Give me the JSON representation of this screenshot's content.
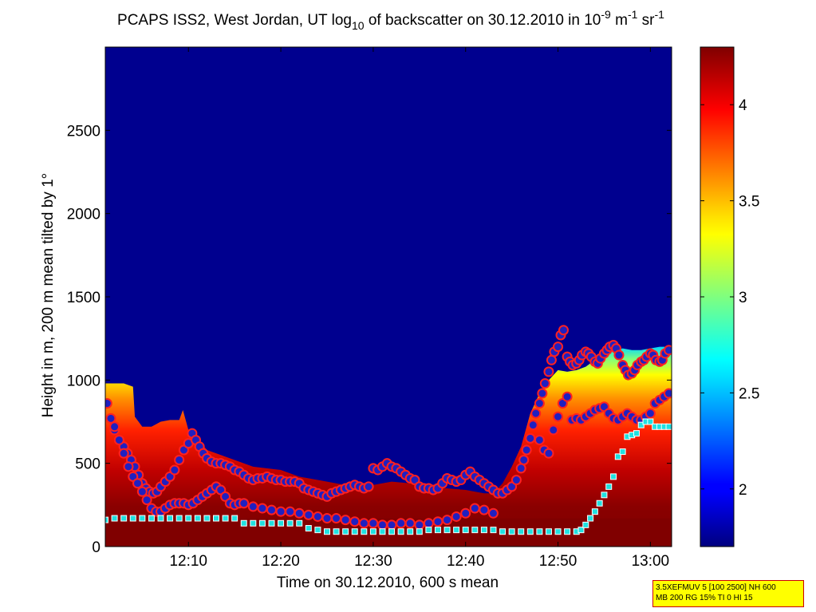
{
  "chart_data": {
    "type": "heatmap",
    "title_parts": {
      "lead": "PCAPS ISS2, West Jordan, UT log",
      "sub": "10",
      "mid": " of backscatter on 30.12.2010 in 10",
      "sup1": "-9",
      "after1": " m",
      "sup2": "-1",
      "after2": " sr",
      "sup3": "-1"
    },
    "xlabel": "Time on 30.12.2010, 600 s mean",
    "ylabel": "Height in m, 200 m mean tilted by 1°",
    "x_ticks": [
      {
        "label": "12:10",
        "min": 10
      },
      {
        "label": "12:20",
        "min": 20
      },
      {
        "label": "12:30",
        "min": 30
      },
      {
        "label": "12:40",
        "min": 40
      },
      {
        "label": "12:50",
        "min": 50
      },
      {
        "label": "13:00",
        "min": 60
      }
    ],
    "xlim_minutes_after_1200": [
      1,
      62.3
    ],
    "y_ticks": [
      0,
      500,
      1000,
      1500,
      2000,
      2500
    ],
    "ylim": [
      0,
      3000
    ],
    "colorbar": {
      "range": [
        1.7,
        4.3
      ],
      "ticks": [
        2,
        2.5,
        3,
        3.5,
        4
      ],
      "colormap": "jet"
    },
    "background_value": 1.7,
    "layer_boundary": {
      "description": "top of enhanced backscatter aerosol layer",
      "time_min": [
        1,
        3,
        4,
        4.2,
        5,
        6,
        7,
        8,
        9,
        9.4,
        10,
        11,
        12,
        13,
        15,
        17,
        20,
        22,
        24,
        26,
        28,
        30,
        32,
        34,
        36,
        38,
        40,
        42,
        43,
        44,
        45,
        46,
        47,
        48,
        49,
        50,
        51,
        52,
        53,
        54,
        55,
        56,
        57,
        58,
        59,
        60,
        61,
        62.3
      ],
      "height_m": [
        980,
        980,
        960,
        780,
        720,
        720,
        750,
        760,
        760,
        820,
        700,
        650,
        580,
        560,
        520,
        480,
        460,
        420,
        400,
        380,
        360,
        370,
        390,
        380,
        360,
        350,
        340,
        320,
        320,
        380,
        480,
        600,
        800,
        920,
        1000,
        1060,
        1050,
        1060,
        1080,
        1120,
        1160,
        1180,
        1190,
        1180,
        1180,
        1190,
        1200,
        1200
      ]
    },
    "series": [
      {
        "marker": "circle-red-outline",
        "time_min": [
          1.2,
          1.6,
          2,
          2.5,
          3,
          3.4,
          3.8,
          4.2,
          4.6,
          5,
          5.4,
          5.8,
          6.2,
          6.6,
          7,
          7.5,
          8,
          8.5,
          9,
          9.5,
          10,
          10.4,
          10.8,
          11.2,
          11.6,
          12,
          12.5,
          13,
          13.5,
          14,
          14.5,
          15,
          15.5,
          16,
          16.5,
          17,
          17.5,
          18,
          18.5,
          19,
          19.5,
          20,
          20.5,
          21,
          21.5,
          22,
          22.5,
          23,
          23.5,
          24,
          24.5,
          25,
          25.5,
          26,
          26.5,
          27,
          27.5,
          28,
          28.5,
          29,
          29.5,
          30,
          30.5,
          31,
          31.5,
          32,
          32.5,
          33,
          33.5,
          34,
          34.5,
          35,
          35.5,
          36,
          36.5,
          37,
          37.5,
          38,
          38.5,
          39,
          39.5,
          40,
          40.5,
          41,
          41.5,
          42,
          42.5,
          43,
          43.5,
          44,
          44.5,
          45,
          45.5,
          46,
          46.3,
          46.6,
          47,
          47.3,
          47.6,
          48,
          48.3,
          48.6,
          49,
          49.3,
          49.6,
          50,
          50.3,
          50.6,
          51,
          51.3,
          51.6,
          52,
          52.3,
          52.6,
          53,
          53.3,
          53.6,
          54,
          54.3,
          54.6,
          55,
          55.3,
          55.6,
          56,
          56.3,
          56.6,
          57,
          57.3,
          57.6,
          58,
          58.3,
          58.6,
          59,
          59.3,
          59.6,
          60,
          60.3,
          60.6,
          61,
          61.3,
          61.6,
          62
        ],
        "height_m": [
          860,
          770,
          700,
          640,
          600,
          560,
          520,
          480,
          430,
          380,
          350,
          330,
          320,
          330,
          360,
          390,
          420,
          460,
          520,
          580,
          620,
          680,
          640,
          600,
          560,
          530,
          510,
          500,
          500,
          490,
          480,
          460,
          450,
          430,
          410,
          400,
          410,
          410,
          420,
          410,
          400,
          400,
          390,
          390,
          390,
          380,
          350,
          340,
          330,
          320,
          310,
          300,
          320,
          330,
          340,
          350,
          360,
          370,
          360,
          350,
          360,
          470,
          460,
          480,
          500,
          480,
          470,
          450,
          430,
          410,
          400,
          360,
          350,
          350,
          340,
          350,
          380,
          410,
          400,
          390,
          400,
          430,
          450,
          420,
          400,
          380,
          360,
          340,
          320,
          320,
          340,
          360,
          400,
          470,
          520,
          580,
          650,
          730,
          800,
          860,
          920,
          980,
          1050,
          1120,
          1170,
          1200,
          1270,
          1300,
          1140,
          1110,
          1090,
          1100,
          1120,
          1150,
          1170,
          1160,
          1140,
          1110,
          1100,
          1130,
          1160,
          1180,
          1200,
          1210,
          1190,
          1150,
          1090,
          1060,
          1030,
          1040,
          1060,
          1090,
          1110,
          1120,
          1140,
          1160,
          1150,
          1120,
          1110,
          1120,
          1160,
          1180,
          1170
        ]
      },
      {
        "marker": "circle-red-outline",
        "time_min": [
          2,
          2.5,
          3,
          3.5,
          4,
          4.5,
          5,
          5.5,
          6,
          6.5,
          7,
          7.5,
          8,
          8.5,
          9,
          9.5,
          10,
          10.5,
          11,
          11.5,
          12,
          12.5,
          13,
          13.5,
          14,
          14.5,
          15,
          15.5,
          16,
          17,
          18,
          19,
          20,
          21,
          22,
          23,
          24,
          25,
          26,
          27,
          28,
          29,
          30,
          31,
          32,
          33,
          34,
          35,
          36,
          37,
          38,
          39,
          40,
          41,
          42,
          43,
          48,
          48.5,
          49,
          49.5,
          50,
          50.5,
          51,
          51.5,
          52,
          52.5,
          53,
          53.5,
          54,
          54.5,
          55,
          55.5,
          56,
          56.5,
          57,
          57.5,
          58,
          58.5,
          59,
          59.5,
          60,
          60.5,
          61,
          61.5,
          62
        ],
        "height_m": [
          720,
          640,
          560,
          480,
          420,
          380,
          330,
          280,
          230,
          210,
          210,
          230,
          250,
          260,
          260,
          260,
          250,
          260,
          280,
          300,
          320,
          340,
          360,
          340,
          300,
          260,
          250,
          260,
          260,
          240,
          230,
          220,
          210,
          210,
          200,
          190,
          180,
          170,
          170,
          160,
          150,
          140,
          140,
          130,
          130,
          140,
          140,
          130,
          140,
          150,
          160,
          180,
          200,
          230,
          220,
          200,
          640,
          580,
          560,
          700,
          780,
          860,
          900,
          760,
          770,
          760,
          780,
          800,
          820,
          830,
          840,
          800,
          770,
          760,
          780,
          800,
          780,
          760,
          760,
          780,
          800,
          860,
          880,
          900,
          920
        ]
      },
      {
        "marker": "square-cyan",
        "time_min": [
          1,
          2,
          3,
          4,
          5,
          6,
          7,
          8,
          9,
          10,
          11,
          12,
          13,
          14,
          15,
          16,
          17,
          18,
          19,
          20,
          21,
          22,
          23,
          24,
          25,
          26,
          27,
          28,
          29,
          30,
          31,
          32,
          33,
          34,
          35,
          36,
          37,
          38,
          39,
          40,
          41,
          42,
          43,
          44,
          45,
          46,
          47,
          48,
          49,
          50,
          51,
          52,
          52.5,
          53,
          53.5,
          54,
          54.5,
          55,
          55.5,
          56,
          56.5,
          57,
          57.5,
          58,
          58.5,
          59,
          59.5,
          60,
          60.5,
          61,
          61.5,
          62
        ],
        "height_m": [
          160,
          170,
          170,
          170,
          170,
          170,
          170,
          170,
          170,
          170,
          170,
          170,
          170,
          170,
          170,
          140,
          140,
          140,
          140,
          140,
          140,
          140,
          110,
          100,
          90,
          90,
          90,
          90,
          90,
          90,
          90,
          90,
          90,
          90,
          90,
          100,
          100,
          100,
          100,
          100,
          100,
          100,
          100,
          90,
          90,
          90,
          90,
          90,
          90,
          90,
          90,
          90,
          100,
          130,
          170,
          210,
          260,
          310,
          360,
          420,
          540,
          570,
          660,
          670,
          680,
          730,
          750,
          750,
          720,
          720,
          720,
          720
        ]
      }
    ]
  },
  "config_box": {
    "line1": "3.5XEFMUV 5 [100 2500] NH 600",
    "line2": "MB 200 RG 15% TI 0 HI 15"
  }
}
